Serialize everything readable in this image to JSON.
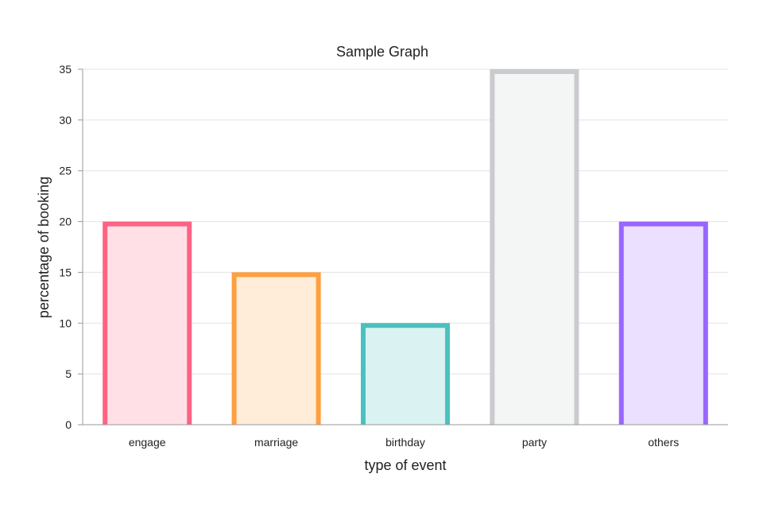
{
  "chart_data": {
    "type": "bar",
    "title": "Sample Graph",
    "xlabel": "type of event",
    "ylabel": "percentage of booking",
    "categories": [
      "engage",
      "marriage",
      "birthday",
      "party",
      "others"
    ],
    "values": [
      20,
      15,
      10,
      35,
      20
    ],
    "ylim": [
      0,
      35
    ],
    "yticks": [
      "0",
      "5",
      "10",
      "15",
      "20",
      "25",
      "30",
      "35"
    ],
    "grid": true,
    "legend": "none",
    "colors": {
      "stroke": [
        "#ff6384",
        "#ff9f40",
        "#4bc0c0",
        "#c9cbcf",
        "#9966ff"
      ],
      "fill": [
        "#ffe0e6",
        "#ffecd9",
        "#dbf2f2",
        "#f4f5f5",
        "#ebe0ff"
      ]
    }
  }
}
